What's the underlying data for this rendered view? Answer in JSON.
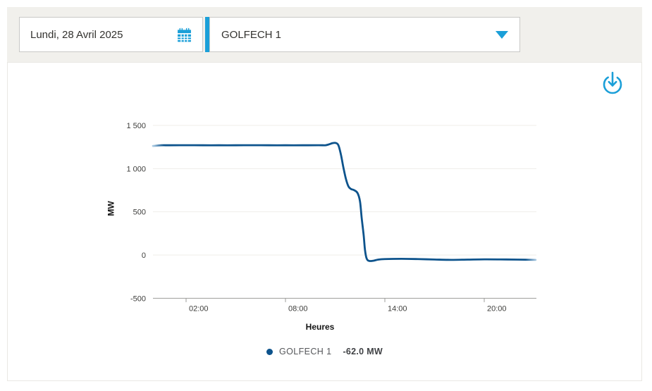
{
  "accent_color": "#1b9fd8",
  "topbar": {
    "date_picker": {
      "value": "Lundi, 28 Avril 2025",
      "icon": "calendar-icon"
    },
    "unit_select": {
      "value": "GOLFECH 1",
      "icon": "chevron-down-icon"
    }
  },
  "chart_card": {
    "download_icon": "download-icon"
  },
  "chart_data": {
    "type": "line",
    "title": "",
    "xlabel": "Heures",
    "ylabel": "MW",
    "xlim_hours": [
      0,
      24
    ],
    "ylim": [
      -500,
      1500
    ],
    "grid": true,
    "x_ticks": [
      {
        "hour": 2,
        "label": "02:00"
      },
      {
        "hour": 8,
        "label": "08:00"
      },
      {
        "hour": 14,
        "label": "14:00"
      },
      {
        "hour": 20,
        "label": "20:00"
      }
    ],
    "y_ticks": [
      {
        "value": 1500,
        "label": "1 500"
      },
      {
        "value": 1000,
        "label": "1 000"
      },
      {
        "value": 500,
        "label": "500"
      },
      {
        "value": 0,
        "label": "0"
      },
      {
        "value": -500,
        "label": "-500"
      }
    ],
    "series": [
      {
        "name": "GOLFECH 1",
        "color": "#0d538c",
        "points_hour_mw": [
          [
            0,
            1262
          ],
          [
            0.5,
            1270
          ],
          [
            1,
            1270
          ],
          [
            2,
            1271
          ],
          [
            3,
            1270
          ],
          [
            4,
            1270
          ],
          [
            5,
            1270
          ],
          [
            6,
            1271
          ],
          [
            7,
            1270
          ],
          [
            8,
            1270
          ],
          [
            9,
            1270
          ],
          [
            10,
            1271
          ],
          [
            10.4,
            1270
          ],
          [
            10.6,
            1279
          ],
          [
            10.85,
            1295
          ],
          [
            11.05,
            1296
          ],
          [
            11.2,
            1268
          ],
          [
            11.35,
            1160
          ],
          [
            11.5,
            1010
          ],
          [
            11.65,
            880
          ],
          [
            11.8,
            795
          ],
          [
            11.95,
            765
          ],
          [
            12.15,
            750
          ],
          [
            12.35,
            718
          ],
          [
            12.5,
            620
          ],
          [
            12.6,
            430
          ],
          [
            12.72,
            230
          ],
          [
            12.8,
            60
          ],
          [
            12.9,
            -40
          ],
          [
            13.05,
            -68
          ],
          [
            13.3,
            -66
          ],
          [
            13.6,
            -53
          ],
          [
            14,
            -47
          ],
          [
            15,
            -44
          ],
          [
            16,
            -47
          ],
          [
            17,
            -52
          ],
          [
            18,
            -56
          ],
          [
            19,
            -53
          ],
          [
            20,
            -50
          ],
          [
            21,
            -51
          ],
          [
            22,
            -53
          ],
          [
            23.1,
            -56
          ]
        ]
      }
    ],
    "legend": {
      "series_name": "GOLFECH 1",
      "value_label": "-62.0 MW"
    },
    "legend_position": "bottom-center"
  }
}
